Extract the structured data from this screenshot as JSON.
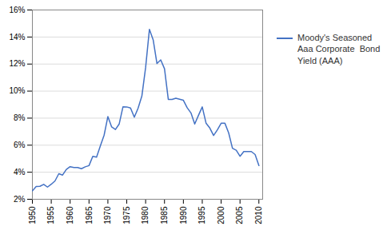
{
  "chart_data": {
    "type": "line",
    "x": [
      1950,
      1951,
      1952,
      1953,
      1954,
      1955,
      1956,
      1957,
      1958,
      1959,
      1960,
      1961,
      1962,
      1963,
      1964,
      1965,
      1966,
      1967,
      1968,
      1969,
      1970,
      1971,
      1972,
      1973,
      1974,
      1975,
      1976,
      1977,
      1978,
      1979,
      1980,
      1981,
      1982,
      1983,
      1984,
      1985,
      1986,
      1987,
      1988,
      1989,
      1990,
      1991,
      1992,
      1993,
      1994,
      1995,
      1996,
      1997,
      1998,
      1999,
      2000,
      2001,
      2002,
      2003,
      2004,
      2005,
      2006,
      2007,
      2008,
      2009,
      2010
    ],
    "series": [
      {
        "name": "Moody's Seasoned\nAaa Corporate  Bond\nYield (AAA)",
        "color": "#4472C4",
        "values": [
          0.0262,
          0.0294,
          0.0296,
          0.031,
          0.029,
          0.0311,
          0.0336,
          0.0389,
          0.0379,
          0.0421,
          0.0441,
          0.0435,
          0.0435,
          0.0426,
          0.044,
          0.0449,
          0.0518,
          0.0511,
          0.0594,
          0.0674,
          0.0812,
          0.0735,
          0.0716,
          0.0757,
          0.0884,
          0.0883,
          0.0875,
          0.0807,
          0.0873,
          0.0963,
          0.1175,
          0.1457,
          0.1379,
          0.1204,
          0.1231,
          0.1165,
          0.0939,
          0.0938,
          0.0947,
          0.094,
          0.0932,
          0.0877,
          0.0839,
          0.0757,
          0.0821,
          0.0883,
          0.0763,
          0.0727,
          0.0672,
          0.0713,
          0.0762,
          0.0762,
          0.069,
          0.0577,
          0.0563,
          0.0518,
          0.0553,
          0.0553,
          0.0553,
          0.0531,
          0.0449
        ]
      }
    ],
    "xlim": [
      1950,
      2011
    ],
    "xticks": [
      1950,
      1955,
      1960,
      1965,
      1970,
      1975,
      1980,
      1985,
      1990,
      1995,
      2000,
      2005,
      2010
    ],
    "ylim": [
      0.02,
      0.16
    ],
    "yticks": [
      {
        "value": 0.02,
        "label": "2%"
      },
      {
        "value": 0.04,
        "label": "4%"
      },
      {
        "value": 0.06,
        "label": "6%"
      },
      {
        "value": 0.08,
        "label": "8%"
      },
      {
        "value": 0.1,
        "label": "10%"
      },
      {
        "value": 0.12,
        "label": "12%"
      },
      {
        "value": 0.14,
        "label": "14%"
      },
      {
        "value": 0.16,
        "label": "16%"
      }
    ],
    "grid": true,
    "legend": "right"
  }
}
